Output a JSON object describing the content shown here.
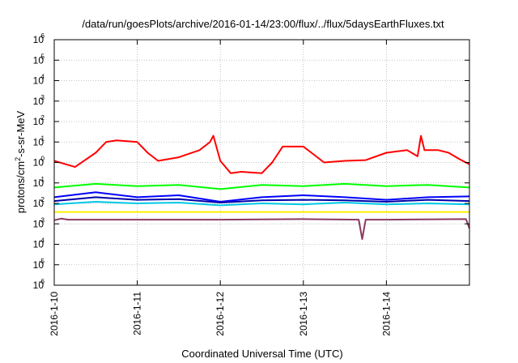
{
  "chart_data": {
    "type": "line",
    "title": "/data/run/goesPlots/archive/2016-01-14/23:00/flux/../flux/5daysEarthFluxes.txt",
    "xlabel": "Coordinated Universal Time (UTC)",
    "ylabel": {
      "prefix": "protons/cm",
      "sup": "2",
      "suffix": "-s-sr-MeV"
    },
    "y_scale": "log",
    "ylim": [
      1e-06,
      1000000.0
    ],
    "y_ticks": [
      {
        "base": "10",
        "exp": "-6",
        "value": 1e-06
      },
      {
        "base": "10",
        "exp": "-5",
        "value": 1e-05
      },
      {
        "base": "10",
        "exp": "-4",
        "value": 0.0001
      },
      {
        "base": "10",
        "exp": "-3",
        "value": 0.001
      },
      {
        "base": "10",
        "exp": "-2",
        "value": 0.01
      },
      {
        "base": "10",
        "exp": "-1",
        "value": 0.1
      },
      {
        "base": "10",
        "exp": "0",
        "value": 1
      },
      {
        "base": "10",
        "exp": "1",
        "value": 10
      },
      {
        "base": "10",
        "exp": "2",
        "value": 100
      },
      {
        "base": "10",
        "exp": "3",
        "value": 1000
      },
      {
        "base": "10",
        "exp": "4",
        "value": 10000
      },
      {
        "base": "10",
        "exp": "5",
        "value": 100000
      },
      {
        "base": "10",
        "exp": "6",
        "value": 1000000
      }
    ],
    "xlim": [
      "2016-1-10",
      "2016-1-15"
    ],
    "x_ticks": [
      "2016-1-10",
      "2016-1-11",
      "2016-1-12",
      "2016-1-13",
      "2016-1-14"
    ],
    "grid": true,
    "series": [
      {
        "color": "#ff0000",
        "x": [
          "2016-1-10 00:00",
          "2016-1-10 06:00",
          "2016-1-10 12:00",
          "2016-1-10 15:00",
          "2016-1-10 18:00",
          "2016-1-11 00:00",
          "2016-1-11 03:00",
          "2016-1-11 06:00",
          "2016-1-11 12:00",
          "2016-1-11 18:00",
          "2016-1-11 21:00",
          "2016-1-11 22:00",
          "2016-1-12 00:00",
          "2016-1-12 03:00",
          "2016-1-12 06:00",
          "2016-1-12 12:00",
          "2016-1-12 15:00",
          "2016-1-12 18:00",
          "2016-1-13 00:00",
          "2016-1-13 06:00",
          "2016-1-13 12:00",
          "2016-1-13 18:00",
          "2016-1-14 00:00",
          "2016-1-14 06:00",
          "2016-1-14 09:00",
          "2016-1-14 10:00",
          "2016-1-14 11:00",
          "2016-1-14 15:00",
          "2016-1-14 18:00",
          "2016-1-14 21:00",
          "2016-1-15 00:00"
        ],
        "y": [
          1.2,
          0.6,
          3,
          10,
          12,
          10,
          3,
          1.2,
          1.8,
          4,
          10,
          20,
          1.2,
          0.3,
          0.35,
          0.3,
          1,
          6,
          6,
          1,
          1.2,
          1.3,
          3,
          4,
          2,
          20,
          4,
          4,
          3,
          1.5,
          0.8
        ]
      },
      {
        "color": "#00ff00",
        "x": [
          "2016-1-10 00:00",
          "2016-1-10 12:00",
          "2016-1-11 00:00",
          "2016-1-11 12:00",
          "2016-1-12 00:00",
          "2016-1-12 12:00",
          "2016-1-13 00:00",
          "2016-1-13 12:00",
          "2016-1-14 00:00",
          "2016-1-14 12:00",
          "2016-1-15 00:00"
        ],
        "y": [
          0.06,
          0.09,
          0.07,
          0.08,
          0.05,
          0.08,
          0.07,
          0.09,
          0.07,
          0.08,
          0.06
        ]
      },
      {
        "color": "#0000ff",
        "x": [
          "2016-1-10 00:00",
          "2016-1-10 12:00",
          "2016-1-11 00:00",
          "2016-1-11 12:00",
          "2016-1-12 00:00",
          "2016-1-12 12:00",
          "2016-1-13 00:00",
          "2016-1-13 12:00",
          "2016-1-14 00:00",
          "2016-1-14 12:00",
          "2016-1-15 00:00"
        ],
        "y": [
          0.02,
          0.035,
          0.02,
          0.025,
          0.012,
          0.02,
          0.025,
          0.02,
          0.015,
          0.02,
          0.022
        ]
      },
      {
        "color": "#00c8e6",
        "x": [
          "2016-1-10 00:00",
          "2016-1-10 12:00",
          "2016-1-11 00:00",
          "2016-1-11 12:00",
          "2016-1-12 00:00",
          "2016-1-12 12:00",
          "2016-1-13 00:00",
          "2016-1-13 12:00",
          "2016-1-14 00:00",
          "2016-1-14 12:00",
          "2016-1-15 00:00"
        ],
        "y": [
          0.009,
          0.012,
          0.01,
          0.011,
          0.008,
          0.01,
          0.009,
          0.011,
          0.009,
          0.01,
          0.009
        ]
      },
      {
        "color": "#0000aa",
        "x": [
          "2016-1-10 00:00",
          "2016-1-10 12:00",
          "2016-1-11 00:00",
          "2016-1-11 12:00",
          "2016-1-12 00:00",
          "2016-1-12 12:00",
          "2016-1-13 00:00",
          "2016-1-13 12:00",
          "2016-1-14 00:00",
          "2016-1-14 12:00",
          "2016-1-15 00:00"
        ],
        "y": [
          0.013,
          0.02,
          0.015,
          0.016,
          0.011,
          0.014,
          0.015,
          0.014,
          0.012,
          0.015,
          0.013
        ]
      },
      {
        "color": "#ffee00",
        "x": [
          "2016-1-10 00:00",
          "2016-1-11 00:00",
          "2016-1-12 00:00",
          "2016-1-13 00:00",
          "2016-1-14 00:00",
          "2016-1-15 00:00"
        ],
        "y": [
          0.0038,
          0.0038,
          0.0038,
          0.0038,
          0.0038,
          0.0038
        ]
      },
      {
        "color": "#8b3a62",
        "x": [
          "2016-1-10 00:00",
          "2016-1-10 02:00",
          "2016-1-10 04:00",
          "2016-1-11 00:00",
          "2016-1-12 00:00",
          "2016-1-13 00:00",
          "2016-1-13 16:00",
          "2016-1-13 17:00",
          "2016-1-13 18:00",
          "2016-1-14 00:00",
          "2016-1-14 23:00",
          "2016-1-15 00:00"
        ],
        "y": [
          0.0015,
          0.0018,
          0.0016,
          0.0016,
          0.0016,
          0.0017,
          0.0016,
          0.00018,
          0.0016,
          0.0016,
          0.0017,
          0.0006
        ]
      }
    ]
  }
}
